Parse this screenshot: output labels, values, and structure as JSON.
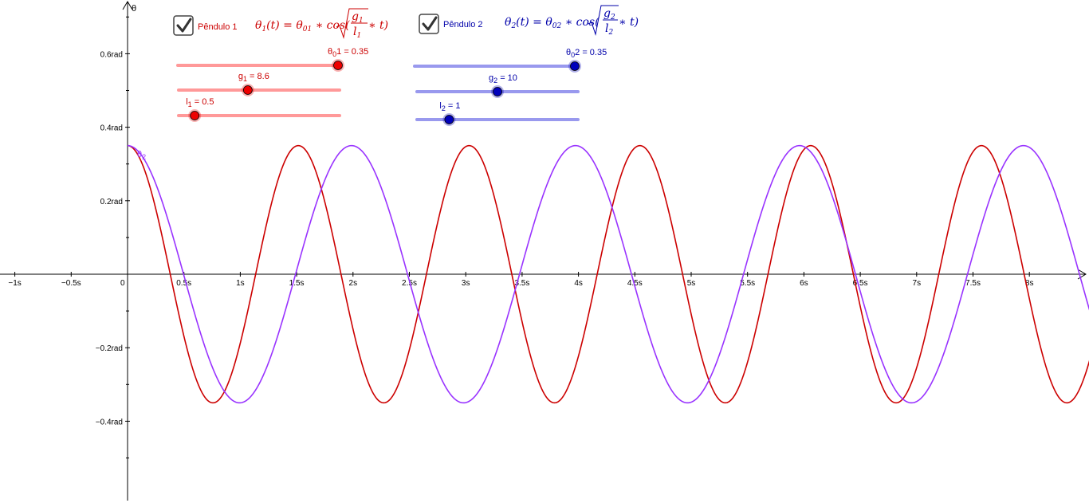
{
  "axes": {
    "x_tick_labels": [
      "−1s",
      "−0.5s",
      "0",
      "0.5s",
      "1s",
      "1.5s",
      "2s",
      "2.5s",
      "3s",
      "3.5s",
      "4s",
      "4.5s",
      "5s",
      "5.5s",
      "6s",
      "6.5s",
      "7s",
      "7.5s",
      "8s"
    ],
    "y_tick_labels": [
      "0.6rad",
      "0.4rad",
      "0.2rad",
      "−0.2rad",
      "−0.4rad"
    ],
    "y_axis_title": "θ"
  },
  "pendulum1": {
    "checkbox_label": "Pêndulo 1",
    "checked": true,
    "color": "#cc0000",
    "slider_color": "#ff9999",
    "knob_color": "#ee0000",
    "formula": {
      "lhs_sym": "θ",
      "lhs_sub": "1",
      "lhs_arg": "(t) = ",
      "rhs_sym": "θ",
      "rhs_sub": "01",
      "op": " ∗ cos(",
      "num": "g",
      "num_sub": "1",
      "den": "l",
      "den_sub": "1",
      "tail": " ∗ t)"
    },
    "theta0": {
      "name": "θ",
      "sub": "0",
      "suffix": "1 = 0.35",
      "value": 0.35,
      "min": 0,
      "max": 0.35
    },
    "g": {
      "name": "g",
      "sub": "1",
      "suffix": " = 8.6",
      "value": 8.6,
      "min": 0,
      "max": 20
    },
    "l": {
      "name": "l",
      "sub": "1",
      "suffix": " = 0.5",
      "value": 0.5,
      "min": 0,
      "max": 5
    }
  },
  "pendulum2": {
    "checkbox_label": "Pêndulo 2",
    "checked": true,
    "color": "#9933ff",
    "label_color": "#0000aa",
    "slider_color": "#9999ee",
    "knob_color": "#0000bb",
    "curve_label": {
      "sym": "θ",
      "sub": "2"
    },
    "formula": {
      "lhs_sym": "θ",
      "lhs_sub": "2",
      "lhs_arg": "(t) = ",
      "rhs_sym": "θ",
      "rhs_sub": "02",
      "op": " ∗ cos(",
      "num": "g",
      "num_sub": "2",
      "den": "l",
      "den_sub": "2",
      "tail": " ∗ t)"
    },
    "theta0": {
      "name": "θ",
      "sub": "0",
      "suffix": "2 = 0.35",
      "value": 0.35,
      "min": 0,
      "max": 0.35
    },
    "g": {
      "name": "g",
      "sub": "2",
      "suffix": " = 10",
      "value": 10,
      "min": 0,
      "max": 20
    },
    "l": {
      "name": "l",
      "sub": "2",
      "suffix": " = 1",
      "value": 1,
      "min": 0,
      "max": 5
    }
  },
  "chart_data": {
    "type": "line",
    "title": "",
    "xlabel": "",
    "ylabel": "θ",
    "xlim": [
      -1.13,
      8.6
    ],
    "ylim": [
      -0.595,
      0.755
    ],
    "grid": false,
    "series": [
      {
        "name": "θ1",
        "formula": "0.35*cos(sqrt(8.6/0.5)*t)",
        "color": "#cc0000",
        "x_range": [
          0,
          8.6
        ]
      },
      {
        "name": "θ2",
        "formula": "0.35*cos(sqrt(10/1)*t)",
        "color": "#9933ff",
        "x_range": [
          0,
          8.6
        ]
      }
    ]
  }
}
